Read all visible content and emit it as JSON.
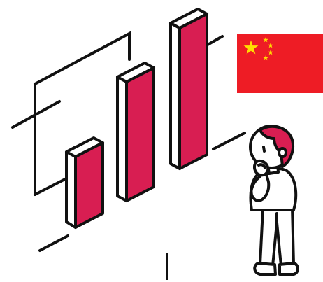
{
  "illustration": {
    "subject": "person-looking-at-bar-chart",
    "bar_count": 3,
    "colors": {
      "bar_front": "#d81e52",
      "bar_side": "#ffffff",
      "outline": "#111111",
      "hair": "#d81e52",
      "skin": "#ffffff"
    }
  },
  "flag": {
    "country": "China",
    "colors": {
      "field": "#ee1c25",
      "stars": "#ffde00"
    }
  },
  "cursor": {
    "icon": "text-cursor-icon"
  }
}
